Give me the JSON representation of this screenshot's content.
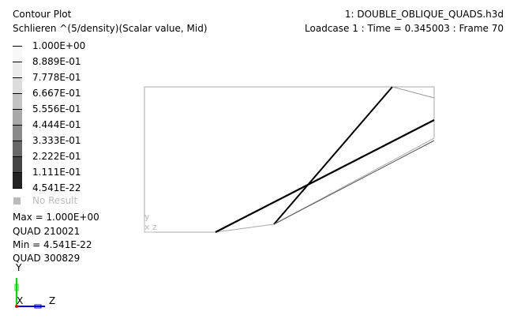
{
  "header": {
    "title": "Contour Plot",
    "subtitle": "Schlieren ^(5/density)(Scalar value, Mid)",
    "file": "1: DOUBLE_OBLIQUE_QUADS.h3d",
    "loadcase": "Loadcase 1 : Time = 0.345003 : Frame 70"
  },
  "legend": {
    "labels": [
      "1.000E+00",
      "8.889E-01",
      "7.778E-01",
      "6.667E-01",
      "5.556E-01",
      "4.444E-01",
      "3.333E-01",
      "2.222E-01",
      "1.111E-01",
      "4.541E-22"
    ],
    "band_colors": [
      "#f8f8f8",
      "#ececec",
      "#dcdcdc",
      "#c4c4c4",
      "#a8a8a8",
      "#8a8a8a",
      "#686868",
      "#454545",
      "#222222",
      "#000000"
    ],
    "no_result": "No Result",
    "no_result_color": "#bbbbbb"
  },
  "stats": {
    "max": "Max =  1.000E+00",
    "max_elem": "QUAD 210021",
    "min": "Min =  4.541E-22",
    "min_elem": "QUAD 300829"
  },
  "triad": {
    "y": "Y",
    "x": "X",
    "z": "Z",
    "y_color": "#00e000",
    "z_color": "#0000e0",
    "origin_color": "#ff0000"
  },
  "model_triad": {
    "y": "y",
    "xz": "x z"
  }
}
